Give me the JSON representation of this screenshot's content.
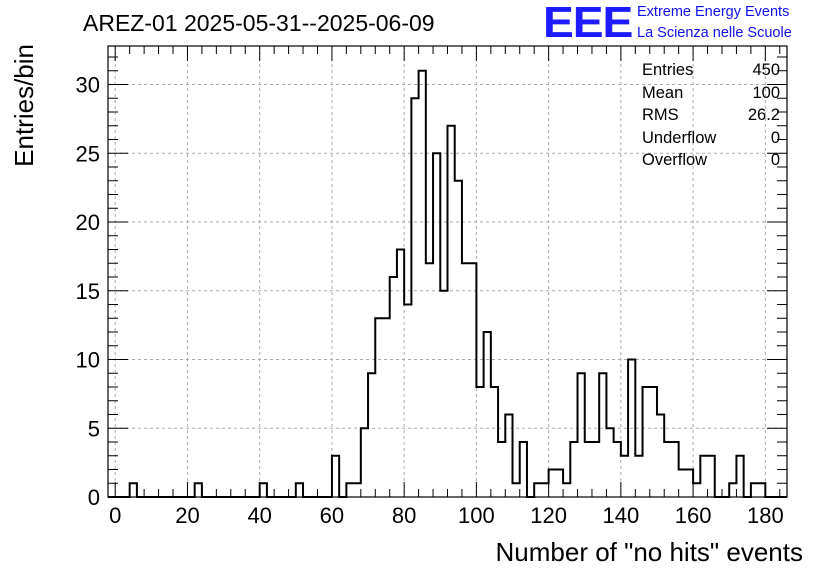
{
  "header": {
    "title": "AREZ-01 2025-05-31--2025-06-09",
    "logo_text": "EEE",
    "logo_line1": "Extreme Energy Events",
    "logo_line2": "La Scienza nelle Scuole",
    "logo_color": "#1010ee"
  },
  "stats": [
    {
      "label": "Entries",
      "value": "450"
    },
    {
      "label": "Mean",
      "value": "100"
    },
    {
      "label": "RMS",
      "value": "26.2"
    },
    {
      "label": "Underflow",
      "value": "0"
    },
    {
      "label": "Overflow",
      "value": "0"
    }
  ],
  "chart_data": {
    "type": "histogram",
    "title": "AREZ-01 2025-05-31--2025-06-09",
    "xlabel": "Number of \"no hits\" events",
    "ylabel": "Entries/bin",
    "xlim": [
      -2,
      186
    ],
    "ylim": [
      0,
      32.8
    ],
    "bin_width": 2,
    "x_ticks": [
      0,
      20,
      40,
      60,
      80,
      100,
      120,
      140,
      160,
      180
    ],
    "y_ticks": [
      0,
      5,
      10,
      15,
      20,
      25,
      30
    ],
    "grid": true,
    "line_color": "#000000",
    "bin_low_edges": [
      -2,
      0,
      2,
      4,
      6,
      8,
      10,
      12,
      14,
      16,
      18,
      20,
      22,
      24,
      26,
      28,
      30,
      32,
      34,
      36,
      38,
      40,
      42,
      44,
      46,
      48,
      50,
      52,
      54,
      56,
      58,
      60,
      62,
      64,
      66,
      68,
      70,
      72,
      74,
      76,
      78,
      80,
      82,
      84,
      86,
      88,
      90,
      92,
      94,
      96,
      98,
      100,
      102,
      104,
      106,
      108,
      110,
      112,
      114,
      116,
      118,
      120,
      122,
      124,
      126,
      128,
      130,
      132,
      134,
      136,
      138,
      140,
      142,
      144,
      146,
      148,
      150,
      152,
      154,
      156,
      158,
      160,
      162,
      164,
      166,
      168,
      170,
      172,
      174,
      176,
      178,
      180,
      182,
      184
    ],
    "counts": [
      0,
      0,
      0,
      1,
      0,
      0,
      0,
      0,
      0,
      0,
      0,
      0,
      1,
      0,
      0,
      0,
      0,
      0,
      0,
      0,
      0,
      1,
      0,
      0,
      0,
      0,
      1,
      0,
      0,
      0,
      0,
      3,
      0,
      1,
      1,
      5,
      9,
      13,
      13,
      16,
      18,
      14,
      29,
      31,
      17,
      25,
      15,
      27,
      23,
      17,
      17,
      8,
      12,
      8,
      4,
      6,
      1,
      4,
      0,
      1,
      1,
      2,
      2,
      1,
      4,
      9,
      4,
      4,
      9,
      5,
      4,
      3,
      10,
      3,
      8,
      8,
      6,
      4,
      4,
      2,
      2,
      1,
      3,
      3,
      0,
      0,
      1,
      3,
      0,
      1,
      1,
      0,
      0,
      0
    ]
  }
}
